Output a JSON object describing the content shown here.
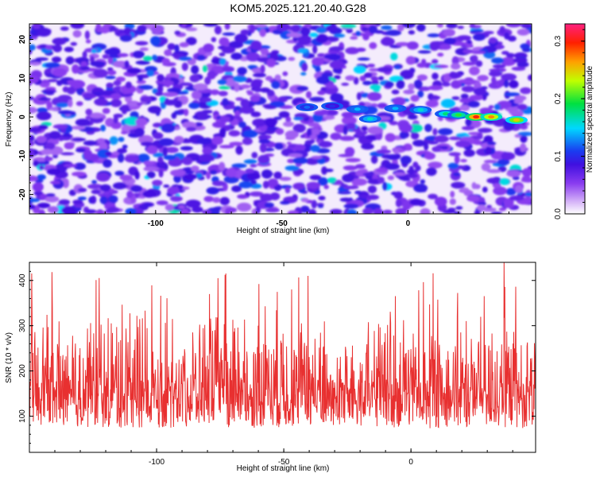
{
  "title": "KOM5.2025.121.20.40.G28",
  "chart_data": [
    {
      "type": "heatmap",
      "xlabel": "Height of straight line (km)",
      "ylabel": "Frequency (Hz)",
      "xlim": [
        -150,
        49
      ],
      "ylim": [
        -25,
        24
      ],
      "xticks": [
        -100,
        -50,
        0
      ],
      "yticks": [
        -20,
        -10,
        0,
        10,
        20
      ],
      "colorbar": {
        "label": "Normalized spectral amplitude",
        "range": [
          0.0,
          0.33
        ],
        "ticks": [
          "0.0",
          "0.1",
          "0.2",
          "0.3"
        ],
        "colors": [
          "#ffffff",
          "#b980f0",
          "#6a00e0",
          "#1a1ae6",
          "#00ccff",
          "#00e000",
          "#ffff00",
          "#ff8000",
          "#ff0000",
          "#ff2070"
        ]
      },
      "ridge": {
        "description": "",
        "points": [
          {
            "x": -40,
            "f": 2.5,
            "amp": 0.12
          },
          {
            "x": -30,
            "f": 2.8,
            "amp": 0.1
          },
          {
            "x": -20,
            "f": 2.0,
            "amp": 0.14
          },
          {
            "x": -15,
            "f": -0.5,
            "amp": 0.16
          },
          {
            "x": -5,
            "f": 2.2,
            "amp": 0.14
          },
          {
            "x": 5,
            "f": 1.8,
            "amp": 0.16
          },
          {
            "x": 15,
            "f": 0.8,
            "amp": 0.18
          },
          {
            "x": 20,
            "f": 0.5,
            "amp": 0.2
          },
          {
            "x": 27,
            "f": 0.0,
            "amp": 0.3
          },
          {
            "x": 33,
            "f": 0.0,
            "amp": 0.27
          },
          {
            "x": 43,
            "f": -0.8,
            "amp": 0.25
          }
        ]
      }
    },
    {
      "type": "line",
      "xlabel": "Height of straight line (km)",
      "ylabel": "SNR (10 * v/v)",
      "xlim": [
        -150,
        49
      ],
      "ylim": [
        20,
        440
      ],
      "xticks": [
        -100,
        -50,
        0
      ],
      "yticks": [
        100,
        200,
        300,
        400
      ],
      "series": [
        {
          "name": "",
          "color": "#e83030",
          "baseline_mean": 130,
          "spread": 55,
          "peak_max": 440
        }
      ]
    }
  ]
}
